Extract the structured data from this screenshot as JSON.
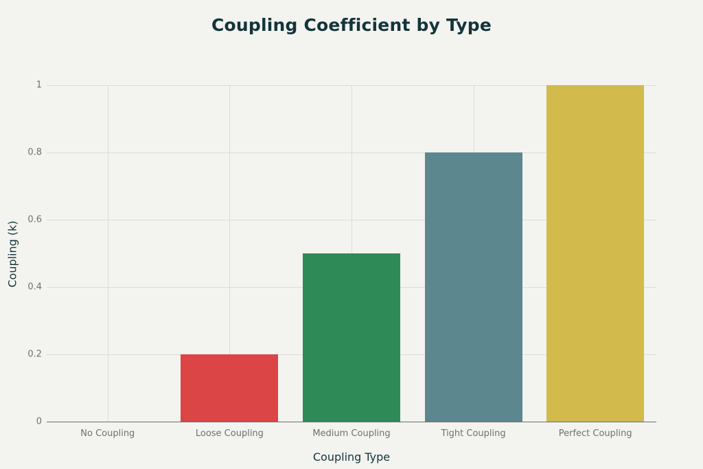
{
  "chart_data": {
    "type": "bar",
    "title": "Coupling Coefficient by Type",
    "xlabel": "Coupling Type",
    "ylabel": "Coupling (k)",
    "categories": [
      "No Coupling",
      "Loose Coupling",
      "Medium Coupling",
      "Tight Coupling",
      "Perfect Coupling"
    ],
    "values": [
      0,
      0.2,
      0.5,
      0.8,
      1.0
    ],
    "colors": [
      "#1fb8cd",
      "#db4545",
      "#2e8b57",
      "#5d878f",
      "#d2ba4c"
    ],
    "ylim": [
      0,
      1
    ],
    "yticks": [
      "0",
      "0.2",
      "0.4",
      "0.6",
      "0.8",
      "1"
    ],
    "grid": true,
    "legend": false
  },
  "title": "Coupling Coefficient by Type",
  "axes": {
    "x_label": "Coupling Type",
    "y_label": "Coupling (k)",
    "y_ticks": [
      "0",
      "0.2",
      "0.4",
      "0.6",
      "0.8",
      "1"
    ]
  },
  "categories": [
    {
      "label": "No Coupling",
      "value": 0,
      "color": "#1fb8cd"
    },
    {
      "label": "Loose Coupling",
      "value": 0.2,
      "color": "#db4545"
    },
    {
      "label": "Medium Coupling",
      "value": 0.5,
      "color": "#2e8b57"
    },
    {
      "label": "Tight Coupling",
      "value": 0.8,
      "color": "#5d878f"
    },
    {
      "label": "Perfect Coupling",
      "value": 1.0,
      "color": "#d2ba4c"
    }
  ]
}
